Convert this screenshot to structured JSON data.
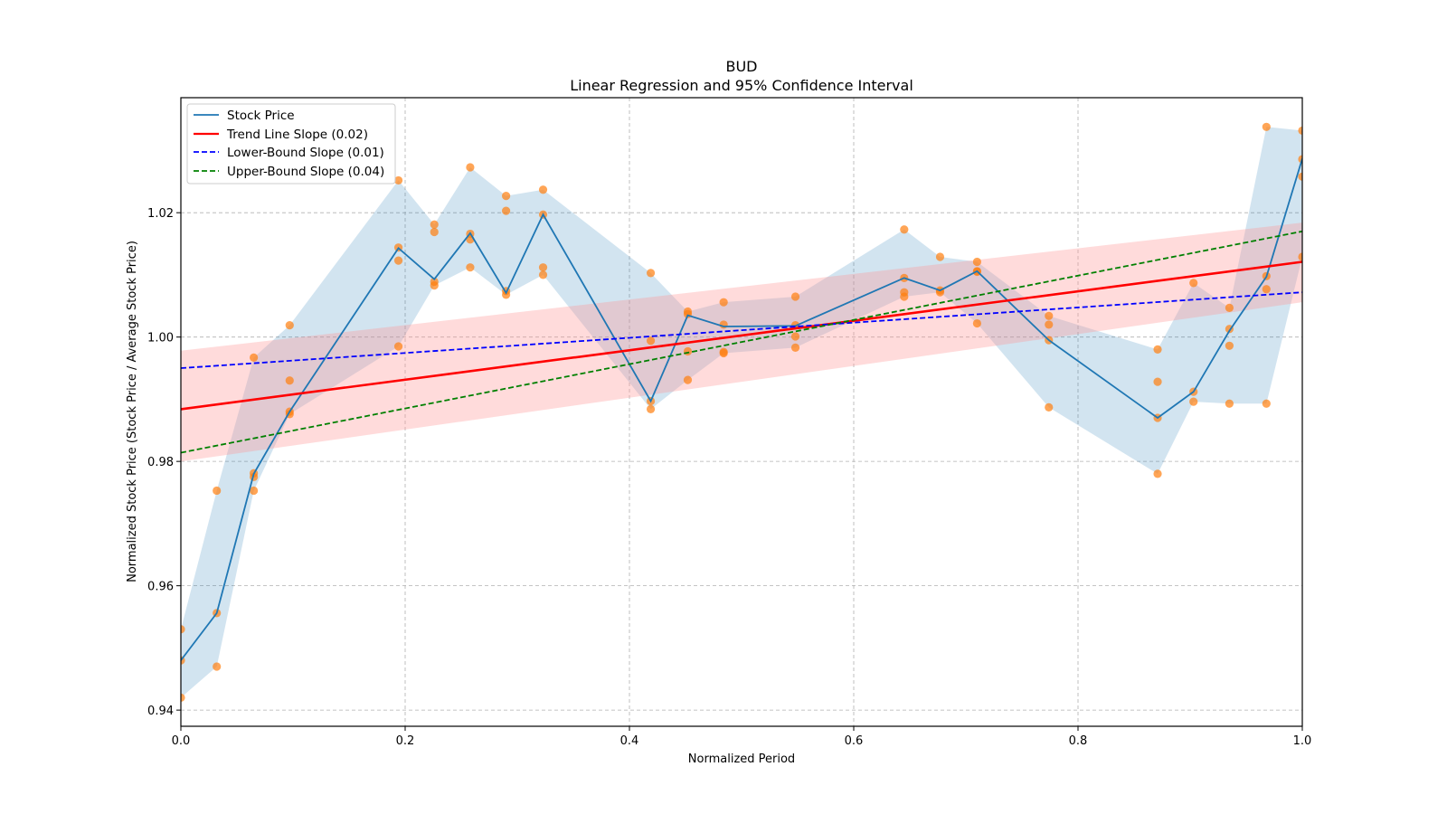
{
  "chart_data": {
    "type": "line",
    "title": "BUD",
    "subtitle": "Linear Regression and 95% Confidence Interval",
    "xlabel": "Normalized Period",
    "ylabel": "Normalized Stock Price (Stock Price / Average Stock Price)",
    "xlim": [
      0.0,
      1.0
    ],
    "ylim": [
      0.9374,
      1.0385
    ],
    "xticks": [
      0.0,
      0.2,
      0.4,
      0.6,
      0.8,
      1.0
    ],
    "xtick_labels": [
      "0.0",
      "0.2",
      "0.4",
      "0.6",
      "0.8",
      "1.0"
    ],
    "yticks": [
      0.94,
      0.96,
      0.98,
      1.0,
      1.02
    ],
    "ytick_labels": [
      "0.94",
      "0.96",
      "0.98",
      "1.00",
      "1.02"
    ],
    "grid": true,
    "legend_position": "top-left",
    "legend": [
      {
        "label": "Stock Price",
        "color": "#1f77b4",
        "style": "solid"
      },
      {
        "label": "Trend Line Slope (0.02)",
        "color": "#ff0000",
        "style": "solid"
      },
      {
        "label": "Lower-Bound Slope (0.01)",
        "color": "#0000ff",
        "style": "dashed"
      },
      {
        "label": "Upper-Bound Slope (0.04)",
        "color": "#008000",
        "style": "dashed"
      }
    ],
    "colors": {
      "stock_line": "#1f77b4",
      "stock_band": "#1f77b4",
      "scatter": "#ff7f0e",
      "trend": "#ff0000",
      "trend_band": "#ff9999",
      "lower": "#0000ff",
      "upper": "#008000"
    },
    "stock_price": {
      "x": [
        0.0,
        0.032,
        0.065,
        0.097,
        0.194,
        0.226,
        0.258,
        0.29,
        0.323,
        0.419,
        0.452,
        0.484,
        0.548,
        0.645,
        0.677,
        0.71,
        0.774,
        0.871,
        0.903,
        0.935,
        0.968,
        1.0
      ],
      "y": [
        0.948,
        0.9556,
        0.978,
        0.988,
        1.0143,
        1.0093,
        1.0167,
        1.0071,
        1.0197,
        0.9897,
        1.0035,
        1.0017,
        1.0018,
        1.0095,
        1.0075,
        1.0106,
        0.9995,
        0.987,
        0.9912,
        1.001,
        1.0097,
        1.0287
      ],
      "band_upper": [
        0.953,
        0.9753,
        0.9967,
        1.0019,
        1.0252,
        1.0181,
        1.0273,
        1.0227,
        1.0237,
        1.0103,
        1.0041,
        1.0056,
        1.0065,
        1.0173,
        1.0129,
        1.0121,
        1.0034,
        0.998,
        1.0087,
        1.0047,
        1.0338,
        1.0332
      ],
      "band_lower": [
        0.942,
        0.947,
        0.9753,
        0.9876,
        0.9985,
        1.0083,
        1.0112,
        1.0068,
        1.01,
        0.9884,
        0.9931,
        0.9974,
        0.9983,
        1.0065,
        1.0072,
        1.0022,
        0.9887,
        0.978,
        0.9896,
        0.9893,
        0.9893,
        1.0129
      ]
    },
    "scatter_points": [
      [
        0.0,
        0.953
      ],
      [
        0.0,
        0.948
      ],
      [
        0.0,
        0.942
      ],
      [
        0.032,
        0.9556
      ],
      [
        0.032,
        0.947
      ],
      [
        0.032,
        0.9753
      ],
      [
        0.065,
        0.9967
      ],
      [
        0.065,
        0.9781
      ],
      [
        0.065,
        0.9775
      ],
      [
        0.065,
        0.9753
      ],
      [
        0.097,
        1.0019
      ],
      [
        0.097,
        0.993
      ],
      [
        0.097,
        0.988
      ],
      [
        0.097,
        0.9876
      ],
      [
        0.194,
        1.0252
      ],
      [
        0.194,
        1.0144
      ],
      [
        0.194,
        1.0123
      ],
      [
        0.194,
        0.9985
      ],
      [
        0.226,
        1.0181
      ],
      [
        0.226,
        1.0169
      ],
      [
        0.226,
        1.0089
      ],
      [
        0.226,
        1.0083
      ],
      [
        0.258,
        1.0273
      ],
      [
        0.258,
        1.0166
      ],
      [
        0.258,
        1.0157
      ],
      [
        0.258,
        1.0112
      ],
      [
        0.29,
        1.0227
      ],
      [
        0.29,
        1.0203
      ],
      [
        0.29,
        1.0074
      ],
      [
        0.29,
        1.0068
      ],
      [
        0.323,
        1.0237
      ],
      [
        0.323,
        1.0197
      ],
      [
        0.323,
        1.0112
      ],
      [
        0.323,
        1.01
      ],
      [
        0.419,
        1.0103
      ],
      [
        0.419,
        0.9994
      ],
      [
        0.419,
        0.9897
      ],
      [
        0.419,
        0.9884
      ],
      [
        0.452,
        1.0041
      ],
      [
        0.452,
        1.0037
      ],
      [
        0.452,
        0.9977
      ],
      [
        0.452,
        0.9931
      ],
      [
        0.484,
        1.0056
      ],
      [
        0.484,
        1.002
      ],
      [
        0.484,
        0.9976
      ],
      [
        0.484,
        0.9974
      ],
      [
        0.548,
        1.0065
      ],
      [
        0.548,
        1.0019
      ],
      [
        0.548,
        1.0001
      ],
      [
        0.548,
        0.9983
      ],
      [
        0.645,
        1.0173
      ],
      [
        0.645,
        1.0095
      ],
      [
        0.645,
        1.0072
      ],
      [
        0.645,
        1.0065
      ],
      [
        0.677,
        1.0129
      ],
      [
        0.677,
        1.0075
      ],
      [
        0.677,
        1.0072
      ],
      [
        0.71,
        1.0121
      ],
      [
        0.71,
        1.0106
      ],
      [
        0.71,
        1.0105
      ],
      [
        0.71,
        1.0022
      ],
      [
        0.774,
        1.0034
      ],
      [
        0.774,
        1.002
      ],
      [
        0.774,
        0.9995
      ],
      [
        0.774,
        0.9887
      ],
      [
        0.871,
        0.998
      ],
      [
        0.871,
        0.9928
      ],
      [
        0.871,
        0.987
      ],
      [
        0.871,
        0.978
      ],
      [
        0.903,
        1.0087
      ],
      [
        0.903,
        0.9912
      ],
      [
        0.903,
        0.9896
      ],
      [
        0.935,
        1.0047
      ],
      [
        0.935,
        1.0013
      ],
      [
        0.935,
        0.9986
      ],
      [
        0.935,
        0.9893
      ],
      [
        0.968,
        1.0338
      ],
      [
        0.968,
        1.0098
      ],
      [
        0.968,
        1.0077
      ],
      [
        0.968,
        0.9893
      ],
      [
        1.0,
        1.0332
      ],
      [
        1.0,
        1.0286
      ],
      [
        1.0,
        1.0258
      ],
      [
        1.0,
        1.0129
      ]
    ],
    "trend_line": {
      "slope": 0.02,
      "x": [
        0.0,
        1.0
      ],
      "y": [
        0.9884,
        1.0121
      ]
    },
    "trend_ci_band": {
      "x": [
        0.0,
        1.0
      ],
      "upper": [
        0.9978,
        1.0184
      ],
      "lower": [
        0.98,
        1.0056
      ]
    },
    "lower_bound_line": {
      "slope": 0.01,
      "x": [
        0.0,
        1.0
      ],
      "y": [
        0.995,
        1.0072
      ]
    },
    "upper_bound_line": {
      "slope": 0.04,
      "x": [
        0.0,
        1.0
      ],
      "y": [
        0.9814,
        1.017
      ]
    }
  }
}
